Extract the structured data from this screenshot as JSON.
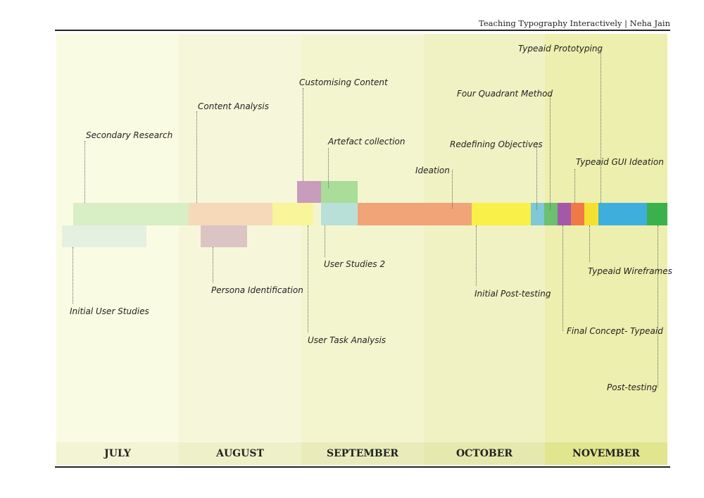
{
  "header": {
    "title": "Teaching Typography Interactively | Neha Jain"
  },
  "months": [
    "JULY",
    "AUGUST",
    "SEPTEMBER",
    "OCTOBER",
    "NOVEMBER"
  ],
  "activities": {
    "secondary_research": "Secondary Research",
    "initial_user_studies": "Initial User Studies",
    "content_analysis": "Content Analysis",
    "persona_identification": "Persona Identification",
    "customising_content": "Customising Content",
    "artefact_collection": "Artefact collection",
    "user_studies_2": "User Studies 2",
    "user_task_analysis": "User Task Analysis",
    "ideation": "Ideation",
    "initial_post_testing": "Initial Post-testing",
    "redefining_objectives": "Redefining Objectives",
    "four_quadrant_method": "Four Quadrant Method",
    "typeaid_prototyping": "Typeaid Prototyping",
    "typeaid_gui_ideation": "Typeaid GUI Ideation",
    "typeaid_wireframes": "Typeaid Wireframes",
    "final_concept": "Final Concept- Typeaid",
    "post_testing": "Post-testing"
  },
  "colors": {
    "secondary_research": "#d8eec4",
    "initial_user_studies": "#e4f0e0",
    "content_analysis": "#f6d9b8",
    "persona_identification": "#dcc4c4",
    "user_task_analysis": "#f9f59a",
    "customising_content": "#c89cbc",
    "artefact_collection": "#a9dd98",
    "user_studies_2": "#b9e0d8",
    "ideation": "#f0a478",
    "initial_post_testing": "#f9f04a",
    "redefining_objectives": "#7ec8d8",
    "four_quadrant_method": "#6cc070",
    "final_concept": "#a25aa8",
    "typeaid_gui_ideation": "#ef7a48",
    "typeaid_wireframes": "#f5e030",
    "typeaid_prototyping": "#3eaedd",
    "post_testing": "#3cb04c"
  }
}
